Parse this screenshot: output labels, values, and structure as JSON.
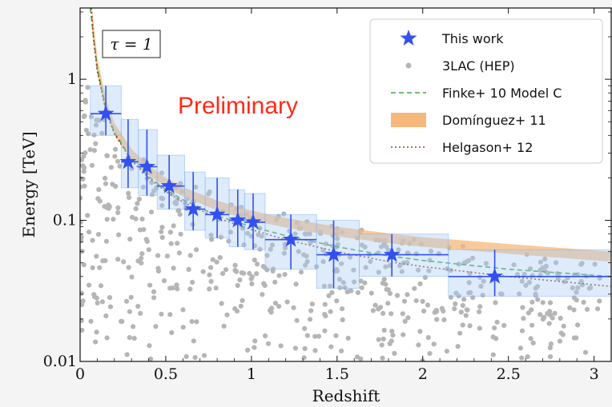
{
  "chart_data": {
    "type": "scatter",
    "title": "",
    "xlabel": "Redshift",
    "ylabel": "Energy [TeV]",
    "xlim": [
      0,
      3.1
    ],
    "ylim": [
      0.01,
      3.2
    ],
    "yscale": "log",
    "x_ticks": [
      0,
      0.5,
      1,
      1.5,
      2,
      2.5,
      3
    ],
    "x_tick_labels": [
      "0",
      "0.5",
      "1",
      "1.5",
      "2",
      "2.5",
      "3"
    ],
    "y_ticks": [
      0.01,
      0.1,
      1
    ],
    "y_tick_labels": [
      "0.01",
      "0.1",
      "1"
    ],
    "annotations": {
      "tau_label": "τ = 1",
      "watermark": "Preliminary"
    },
    "colors": {
      "this_work": "#3350f0",
      "this_work_box": "#a9cdf5",
      "lac": "#b5b5b5",
      "finke": "#3caa3c",
      "dominguez": "#f5b87a",
      "helgason": "#9b3a2a",
      "preliminary": "#ff2a1a"
    },
    "legend": {
      "placement": "top-right",
      "entries": [
        {
          "label": "This work",
          "marker": "star"
        },
        {
          "label": "3LAC (HEP)",
          "marker": "dot"
        },
        {
          "label": "Finke+ 10 Model C",
          "marker": "dashed"
        },
        {
          "label": "Domínguez+ 11",
          "marker": "band"
        },
        {
          "label": "Helgason+ 12",
          "marker": "dotted"
        }
      ]
    },
    "series": [
      {
        "name": "This work",
        "points": [
          {
            "x": 0.15,
            "y": 0.57,
            "x_lo": 0.06,
            "x_hi": 0.24,
            "y_lo": 0.4,
            "y_hi": 0.9
          },
          {
            "x": 0.28,
            "y": 0.26,
            "x_lo": 0.24,
            "x_hi": 0.34,
            "y_lo": 0.17,
            "y_hi": 0.52
          },
          {
            "x": 0.39,
            "y": 0.24,
            "x_lo": 0.34,
            "x_hi": 0.45,
            "y_lo": 0.15,
            "y_hi": 0.44
          },
          {
            "x": 0.52,
            "y": 0.175,
            "x_lo": 0.45,
            "x_hi": 0.61,
            "y_lo": 0.12,
            "y_hi": 0.29
          },
          {
            "x": 0.66,
            "y": 0.12,
            "x_lo": 0.61,
            "x_hi": 0.73,
            "y_lo": 0.085,
            "y_hi": 0.22
          },
          {
            "x": 0.8,
            "y": 0.11,
            "x_lo": 0.73,
            "x_hi": 0.87,
            "y_lo": 0.075,
            "y_hi": 0.2
          },
          {
            "x": 0.92,
            "y": 0.1,
            "x_lo": 0.87,
            "x_hi": 0.96,
            "y_lo": 0.065,
            "y_hi": 0.165
          },
          {
            "x": 1.01,
            "y": 0.097,
            "x_lo": 0.96,
            "x_hi": 1.08,
            "y_lo": 0.062,
            "y_hi": 0.155
          },
          {
            "x": 1.23,
            "y": 0.073,
            "x_lo": 1.08,
            "x_hi": 1.38,
            "y_lo": 0.045,
            "y_hi": 0.11
          },
          {
            "x": 1.48,
            "y": 0.057,
            "x_lo": 1.38,
            "x_hi": 1.63,
            "y_lo": 0.033,
            "y_hi": 0.1
          },
          {
            "x": 1.82,
            "y": 0.057,
            "x_lo": 1.63,
            "x_hi": 2.15,
            "y_lo": 0.04,
            "y_hi": 0.08
          },
          {
            "x": 2.42,
            "y": 0.04,
            "x_lo": 2.15,
            "x_hi": 3.1,
            "y_lo": 0.029,
            "y_hi": 0.062
          }
        ]
      },
      {
        "name": "3LAC (HEP)",
        "count": 600,
        "x_range": [
          0.0,
          3.05
        ],
        "y_range": [
          0.01,
          0.9
        ]
      },
      {
        "name": "Finke+ 10 Model C",
        "x": [
          0.06,
          0.08,
          0.1,
          0.15,
          0.2,
          0.3,
          0.4,
          0.5,
          0.6,
          0.8,
          1.0,
          1.2,
          1.5,
          1.8,
          2.0,
          2.5,
          3.1
        ],
        "y": [
          3.2,
          1.9,
          1.2,
          0.62,
          0.42,
          0.27,
          0.205,
          0.165,
          0.14,
          0.108,
          0.09,
          0.078,
          0.065,
          0.056,
          0.052,
          0.045,
          0.04
        ]
      },
      {
        "name": "Domínguez+ 11",
        "x": [
          0.07,
          0.1,
          0.15,
          0.2,
          0.3,
          0.4,
          0.5,
          0.6,
          0.8,
          1.0,
          1.2,
          1.5,
          1.8,
          2.0,
          2.5,
          3.1
        ],
        "y_lo": [
          2.2,
          1.1,
          0.58,
          0.4,
          0.27,
          0.21,
          0.173,
          0.148,
          0.118,
          0.1,
          0.089,
          0.077,
          0.069,
          0.065,
          0.058,
          0.051
        ],
        "y_hi": [
          3.2,
          1.45,
          0.72,
          0.49,
          0.32,
          0.245,
          0.2,
          0.172,
          0.138,
          0.117,
          0.104,
          0.09,
          0.081,
          0.076,
          0.068,
          0.06
        ]
      },
      {
        "name": "Helgason+ 12",
        "x": [
          0.065,
          0.08,
          0.1,
          0.15,
          0.2,
          0.3,
          0.4,
          0.5,
          0.6,
          0.8,
          1.0,
          1.2,
          1.5,
          1.8,
          2.0,
          2.5,
          3.1
        ],
        "y": [
          3.2,
          1.85,
          1.15,
          0.6,
          0.41,
          0.265,
          0.2,
          0.16,
          0.135,
          0.104,
          0.086,
          0.073,
          0.06,
          0.051,
          0.047,
          0.04,
          0.034
        ]
      }
    ]
  }
}
